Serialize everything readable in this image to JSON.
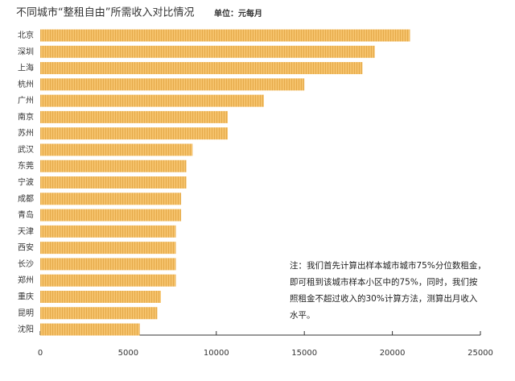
{
  "chart_data": {
    "type": "barh",
    "title": "不同城市“整租自由”所需收入对比情况",
    "subtitle": "单位：元每月",
    "categories": [
      "北京",
      "深圳",
      "上海",
      "杭州",
      "广州",
      "南京",
      "苏州",
      "武汉",
      "东莞",
      "宁波",
      "成都",
      "青岛",
      "天津",
      "西安",
      "长沙",
      "郑州",
      "重庆",
      "昆明",
      "沈阳"
    ],
    "values": [
      21000,
      19000,
      18300,
      15000,
      12700,
      10650,
      10650,
      8650,
      8300,
      8300,
      8000,
      8000,
      7700,
      7700,
      7700,
      7700,
      6850,
      6650,
      5650
    ],
    "color": "#f5c26b",
    "xlim": [
      0,
      25000
    ],
    "xticks": [
      0,
      5000,
      10000,
      15000,
      20000,
      25000
    ],
    "note": [
      "注：我们首先计算出样本城市城市75%分位数租金，",
      "即可租到该城市样本小区中的75%，同时，我们按",
      "照租金不超过收入的30%计算方法，测算出月收入",
      "水平。"
    ]
  }
}
